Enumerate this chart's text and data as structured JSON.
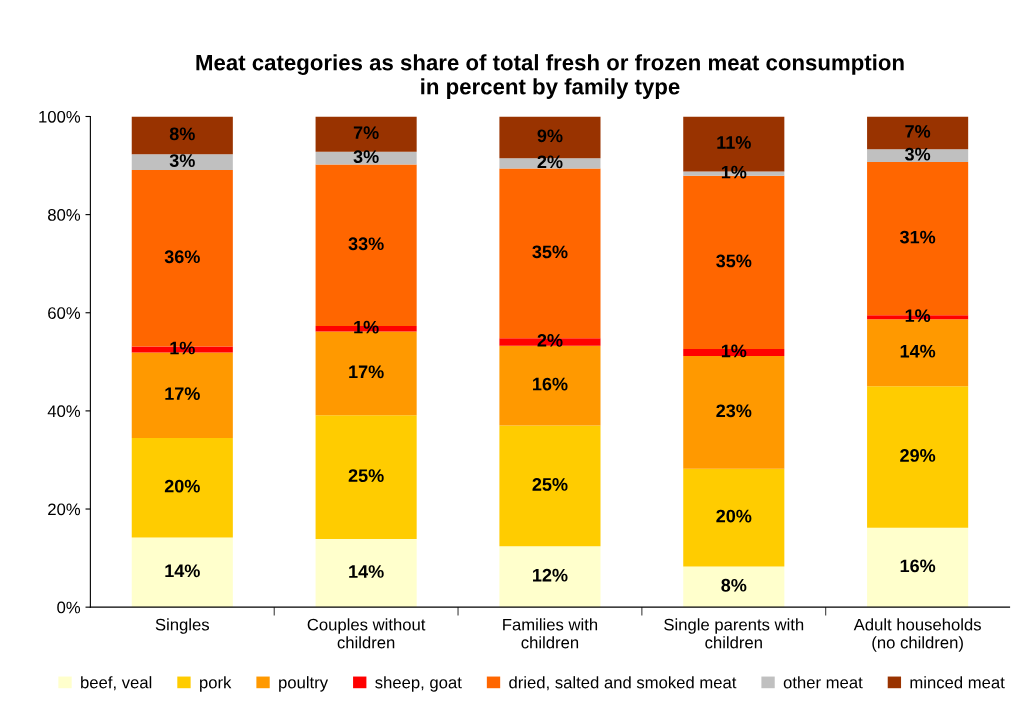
{
  "chart_data": {
    "type": "bar",
    "stacked": true,
    "title": "Meat categories as share of total fresh or frozen meat consumption\nin percent by family type",
    "categories": [
      "Singles",
      "Couples without\nchildren",
      "Families with\nchildren",
      "Single parents with\nchildren",
      "Adult households\n(no children)"
    ],
    "series": [
      {
        "name": "beef, veal",
        "color": "#ffffcc",
        "values": [
          14.2,
          13.9,
          12.4,
          8.3,
          16.2
        ],
        "value_labels": [
          "14%",
          "14%",
          "12%",
          "8%",
          "16%"
        ]
      },
      {
        "name": "pork",
        "color": "#ffcc00",
        "values": [
          20.3,
          25.2,
          24.6,
          19.9,
          28.8
        ],
        "value_labels": [
          "20%",
          "25%",
          "25%",
          "20%",
          "29%"
        ]
      },
      {
        "name": "poultry",
        "color": "#ff9900",
        "values": [
          17.4,
          17.1,
          16.3,
          23.0,
          13.7
        ],
        "value_labels": [
          "17%",
          "17%",
          "16%",
          "23%",
          "14%"
        ]
      },
      {
        "name": "sheep, goat",
        "color": "#ff0000",
        "values": [
          1.2,
          1.1,
          1.5,
          1.4,
          0.8
        ],
        "value_labels": [
          "1%",
          "1%",
          "2%",
          "1%",
          "1%"
        ]
      },
      {
        "name": "dried, salted and smoked meat",
        "color": "#ff6600",
        "values": [
          36.0,
          32.9,
          34.6,
          35.3,
          31.2
        ],
        "value_labels": [
          "36%",
          "33%",
          "35%",
          "35%",
          "31%"
        ]
      },
      {
        "name": "other meat",
        "color": "#c0c0c0",
        "values": [
          3.2,
          2.6,
          2.1,
          0.9,
          2.6
        ],
        "value_labels": [
          "3%",
          "3%",
          "2%",
          "1%",
          "3%"
        ]
      },
      {
        "name": "minced meat",
        "color": "#993300",
        "values": [
          7.7,
          7.2,
          8.5,
          11.2,
          6.7
        ],
        "value_labels": [
          "8%",
          "7%",
          "9%",
          "11%",
          "7%"
        ]
      }
    ],
    "ylim": [
      0,
      100
    ],
    "yticks": [
      {
        "value": 0,
        "label": "0%"
      },
      {
        "value": 20,
        "label": "20%"
      },
      {
        "value": 40,
        "label": "40%"
      },
      {
        "value": 60,
        "label": "60%"
      },
      {
        "value": 80,
        "label": "80%"
      },
      {
        "value": 100,
        "label": "100%"
      }
    ],
    "grid": false,
    "legend": "bottom"
  }
}
